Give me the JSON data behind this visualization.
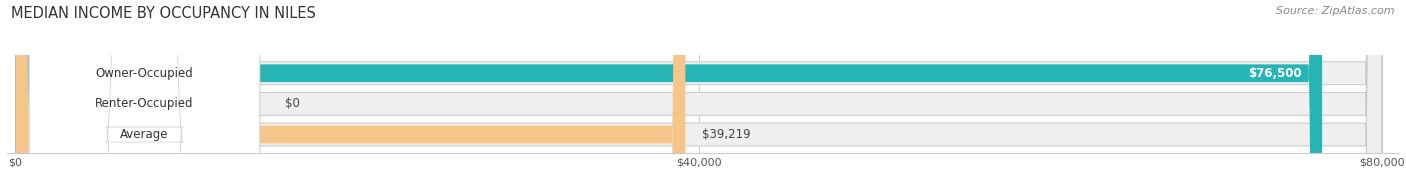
{
  "title": "MEDIAN INCOME BY OCCUPANCY IN NILES",
  "source": "Source: ZipAtlas.com",
  "categories": [
    "Owner-Occupied",
    "Renter-Occupied",
    "Average"
  ],
  "values": [
    76500,
    0,
    39219
  ],
  "bar_colors": [
    "#26b5b5",
    "#b09ec0",
    "#f5c58a"
  ],
  "value_labels": [
    "$76,500",
    "$0",
    "$39,219"
  ],
  "value_label_inside": [
    true,
    false,
    false
  ],
  "xmax": 80000,
  "xticks": [
    0,
    40000,
    80000
  ],
  "xtick_labels": [
    "$0",
    "$40,000",
    "$80,000"
  ],
  "title_fontsize": 10.5,
  "source_fontsize": 8,
  "bar_label_fontsize": 8.5,
  "value_label_fontsize": 8.5,
  "figsize": [
    14.06,
    1.96
  ],
  "dpi": 100
}
